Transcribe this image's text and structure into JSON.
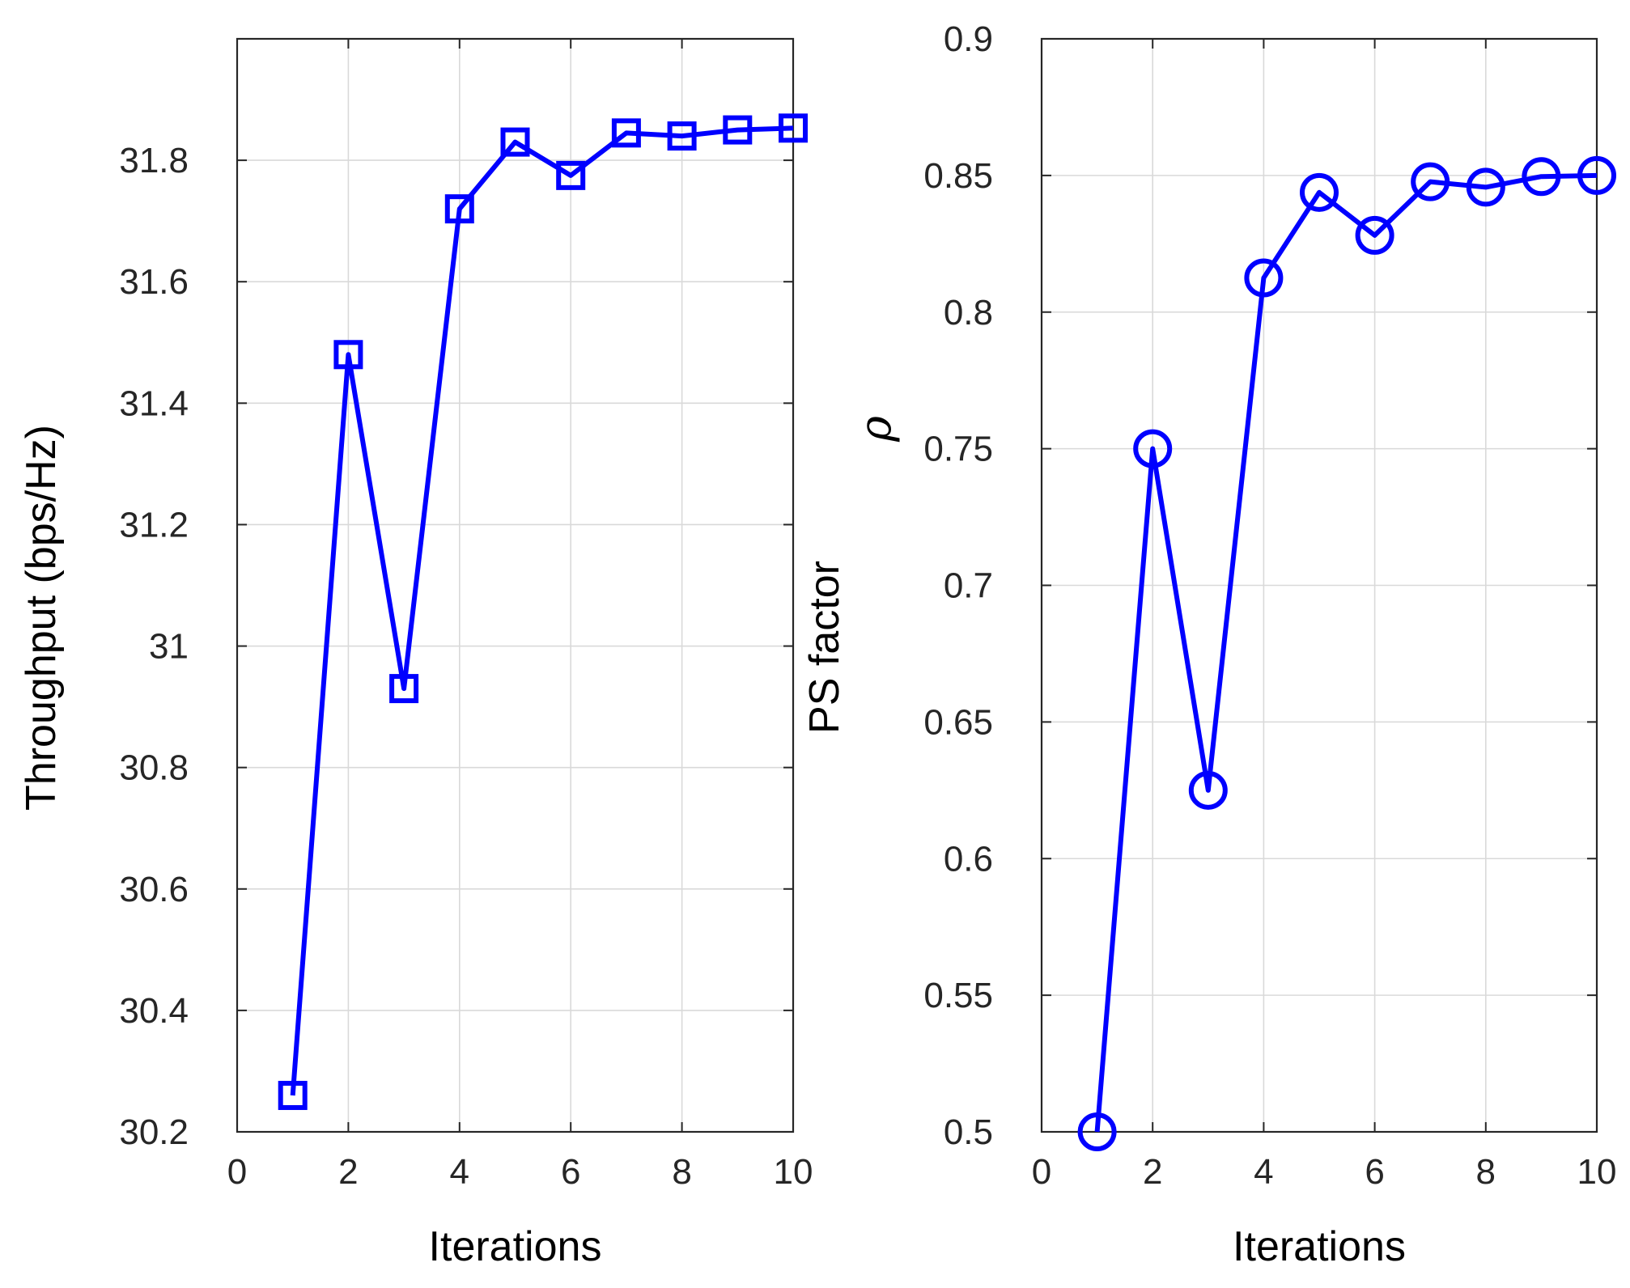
{
  "chart_data": [
    {
      "type": "line",
      "xlabel": "Iterations",
      "ylabel": "Throughput (bps/Hz)",
      "xlim": [
        0,
        10
      ],
      "ylim": [
        30.2,
        32.0
      ],
      "xticks": [
        0,
        2,
        4,
        6,
        8,
        10
      ],
      "yticks": [
        30.2,
        30.4,
        30.6,
        30.8,
        31.0,
        31.2,
        31.4,
        31.6,
        31.8
      ],
      "ytick_labels": [
        "30.2",
        "30.4",
        "30.6",
        "30.8",
        "31",
        "31.2",
        "31.4",
        "31.6",
        "31.8"
      ],
      "xtick_labels": [
        "0",
        "2",
        "4",
        "6",
        "8",
        "10"
      ],
      "grid": true,
      "series": [
        {
          "marker": "square",
          "color": "#0000ff",
          "x": [
            1,
            2,
            3,
            4,
            5,
            6,
            7,
            8,
            9,
            10
          ],
          "y": [
            30.26,
            31.48,
            30.93,
            31.72,
            31.83,
            31.775,
            31.845,
            31.84,
            31.85,
            31.853
          ]
        }
      ]
    },
    {
      "type": "line",
      "xlabel": "Iterations",
      "ylabel": "PS  factor",
      "ylabel_symbol": "ρ",
      "xlim": [
        0,
        10
      ],
      "ylim": [
        0.5,
        0.9
      ],
      "xticks": [
        0,
        2,
        4,
        6,
        8,
        10
      ],
      "yticks": [
        0.5,
        0.55,
        0.6,
        0.65,
        0.7,
        0.75,
        0.8,
        0.85,
        0.9
      ],
      "ytick_labels": [
        "0.5",
        "0.55",
        "0.6",
        "0.65",
        "0.7",
        "0.75",
        "0.8",
        "0.85",
        "0.9"
      ],
      "xtick_labels": [
        "0",
        "2",
        "4",
        "6",
        "8",
        "10"
      ],
      "grid": true,
      "series": [
        {
          "marker": "circle",
          "color": "#0000ff",
          "x": [
            1,
            2,
            3,
            4,
            5,
            6,
            7,
            8,
            9,
            10
          ],
          "y": [
            0.5,
            0.75,
            0.625,
            0.8125,
            0.8438,
            0.8281,
            0.8477,
            0.8457,
            0.8496,
            0.85
          ]
        }
      ]
    }
  ]
}
